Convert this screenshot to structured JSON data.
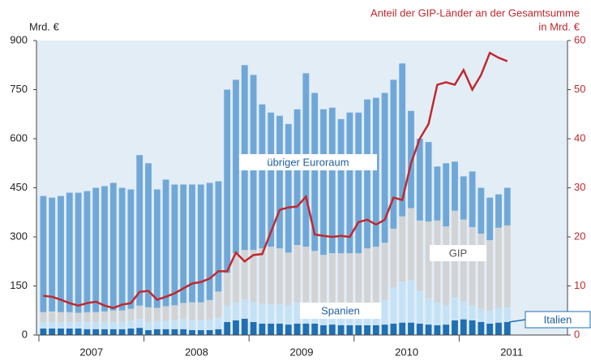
{
  "chart_data": {
    "type": "bar_line",
    "ylabel": "Mrd. €",
    "y2label": "in Mrd. €",
    "year_labels": [
      "2007",
      "2008",
      "2009",
      "2010",
      "2011"
    ],
    "categories": [
      null,
      null,
      null,
      null,
      null,
      null,
      null,
      null,
      null,
      null,
      null,
      null,
      null,
      null,
      null,
      null,
      null,
      null,
      null,
      null,
      null,
      null,
      null,
      null,
      null,
      null,
      null,
      null,
      null,
      null,
      null,
      null,
      null,
      null,
      null,
      null,
      null,
      null,
      null,
      null,
      null,
      null,
      null,
      null,
      null,
      null,
      null,
      null,
      null,
      null,
      null,
      null,
      null,
      null
    ],
    "series": [
      {
        "name": "Italien",
        "color": "#1f6fb4",
        "values": [
          20,
          20,
          20,
          20,
          20,
          18,
          18,
          18,
          18,
          18,
          20,
          22,
          15,
          18,
          18,
          18,
          18,
          15,
          15,
          15,
          18,
          40,
          45,
          50,
          40,
          35,
          35,
          35,
          32,
          35,
          35,
          35,
          30,
          32,
          30,
          30,
          30,
          30,
          30,
          32,
          35,
          38,
          38,
          35,
          32,
          30,
          32,
          45,
          48,
          45,
          40,
          35,
          38,
          40
        ]
      },
      {
        "name": "Spanien",
        "color": "#c4e2f6",
        "values": [
          20,
          20,
          20,
          20,
          20,
          22,
          22,
          22,
          22,
          22,
          25,
          28,
          25,
          25,
          25,
          28,
          30,
          30,
          30,
          32,
          35,
          50,
          55,
          60,
          60,
          60,
          60,
          60,
          60,
          65,
          65,
          62,
          60,
          60,
          60,
          60,
          60,
          65,
          70,
          75,
          110,
          125,
          130,
          100,
          80,
          70,
          60,
          70,
          55,
          45,
          40,
          40,
          45,
          45
        ]
      },
      {
        "name": "GIP",
        "color": "#d2d3d5",
        "values": [
          30,
          32,
          30,
          30,
          28,
          30,
          30,
          32,
          35,
          35,
          35,
          40,
          45,
          40,
          45,
          45,
          50,
          55,
          55,
          60,
          80,
          100,
          150,
          150,
          160,
          170,
          175,
          170,
          160,
          175,
          170,
          160,
          155,
          158,
          160,
          160,
          160,
          170,
          170,
          175,
          180,
          200,
          220,
          215,
          235,
          250,
          240,
          265,
          250,
          240,
          230,
          215,
          245,
          250
        ]
      },
      {
        "name": "übriger Euroraum",
        "color": "#6fa8d8",
        "values": [
          355,
          348,
          355,
          365,
          367,
          370,
          380,
          383,
          390,
          375,
          365,
          460,
          440,
          362,
          387,
          369,
          362,
          360,
          360,
          358,
          337,
          560,
          530,
          565,
          535,
          440,
          410,
          405,
          393,
          415,
          530,
          483,
          445,
          445,
          410,
          430,
          430,
          455,
          455,
          458,
          455,
          467,
          297,
          250,
          243,
          165,
          193,
          150,
          132,
          170,
          140,
          130,
          102,
          115
        ]
      },
      {
        "name": "Anteil der GIP-Länder an der Gesamtsumme",
        "color": "#c0282f",
        "axis": "y2",
        "type": "line",
        "values": [
          8,
          7.8,
          7.2,
          6.5,
          6,
          6.5,
          6.8,
          6,
          5.5,
          6.2,
          6.5,
          8.8,
          9,
          7.2,
          7.8,
          8.5,
          9.5,
          10.5,
          10.8,
          11.5,
          13,
          13,
          16.8,
          15,
          16.3,
          16.5,
          21,
          25.5,
          26,
          26.2,
          28.2,
          20.5,
          20.2,
          20,
          20.2,
          20,
          23,
          23.5,
          22.5,
          23.5,
          28,
          27.5,
          35,
          40,
          43,
          51,
          51.5,
          51,
          54,
          50,
          53,
          57.5,
          56.5,
          55.8
        ]
      }
    ],
    "ylim": [
      0,
      900
    ],
    "yticks": [
      0,
      150,
      300,
      450,
      600,
      750,
      900
    ],
    "y2lim": [
      0,
      60
    ],
    "y2ticks": [
      0,
      10,
      20,
      30,
      40,
      50,
      60
    ]
  }
}
